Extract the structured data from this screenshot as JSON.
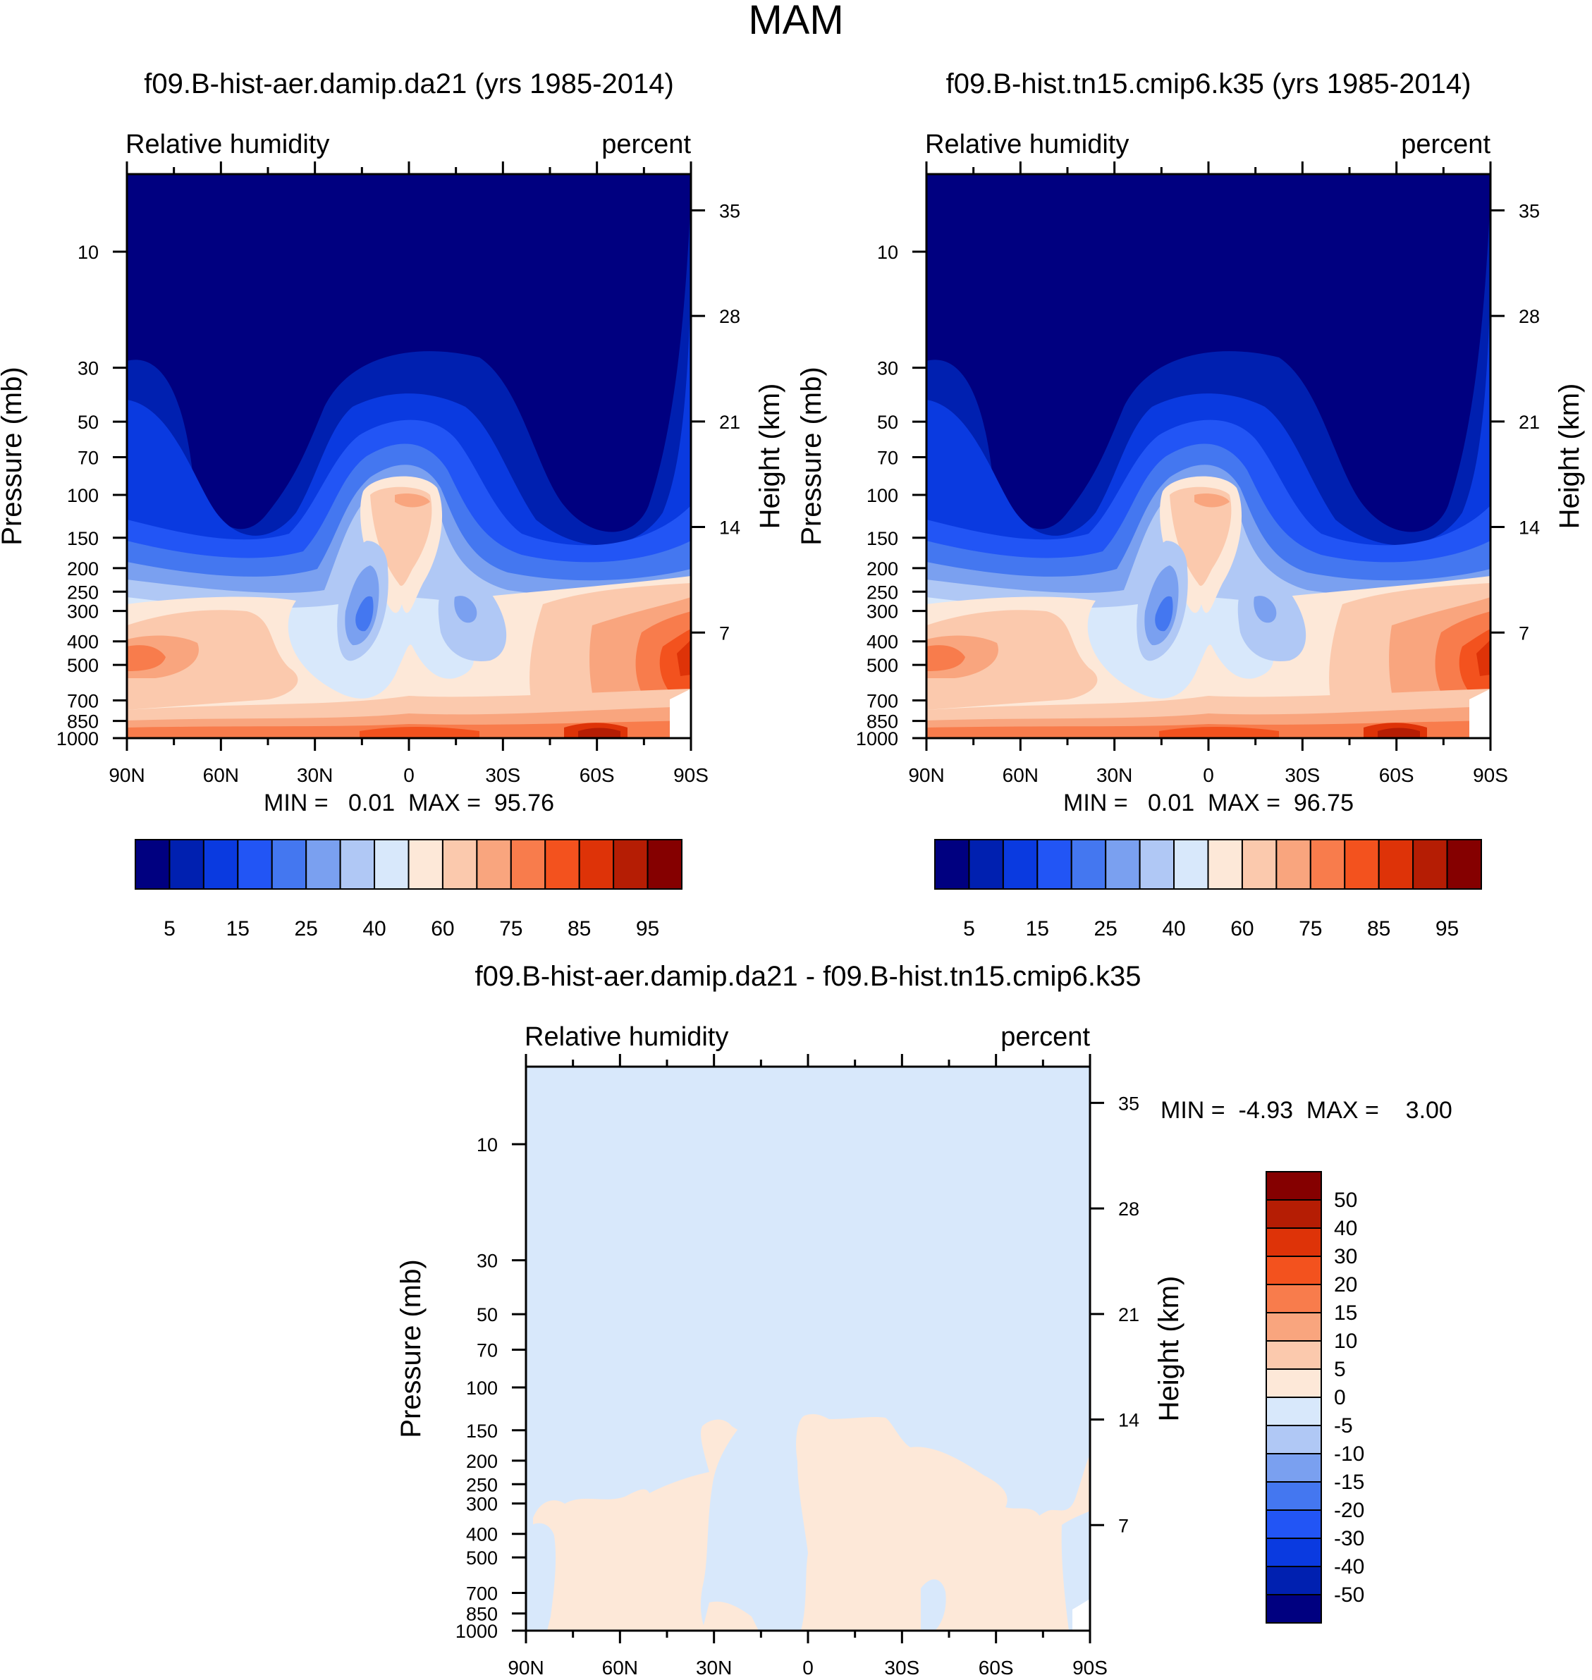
{
  "figure": {
    "title": "MAM"
  },
  "chart_data": [
    {
      "type": "heatmap",
      "title": "f09.B-hist-aer.damip.da21 (yrs 1985-2014)",
      "left_label": "Relative humidity",
      "right_label": "percent",
      "ylabel": "Pressure (mb)",
      "ylabel_right": "Height (km)",
      "x_ticks": [
        "90N",
        "60N",
        "30N",
        "0",
        "30S",
        "60S",
        "90S"
      ],
      "y_ticks": [
        "10",
        "30",
        "50",
        "70",
        "100",
        "150",
        "200",
        "250",
        "300",
        "400",
        "500",
        "700",
        "850",
        "1000"
      ],
      "y_ticks_right": [
        "35",
        "28",
        "21",
        "14",
        "7"
      ],
      "stats": "MIN =   0.01  MAX =  95.76",
      "colorbar_labels": [
        "5",
        "15",
        "25",
        "40",
        "60",
        "75",
        "85",
        "95"
      ],
      "levels": [
        5,
        10,
        15,
        20,
        25,
        30,
        40,
        50,
        60,
        70,
        75,
        80,
        85,
        90,
        95
      ]
    },
    {
      "type": "heatmap",
      "title": "f09.B-hist.tn15.cmip6.k35 (yrs 1985-2014)",
      "left_label": "Relative humidity",
      "right_label": "percent",
      "ylabel": "Pressure (mb)",
      "ylabel_right": "Height (km)",
      "x_ticks": [
        "90N",
        "60N",
        "30N",
        "0",
        "30S",
        "60S",
        "90S"
      ],
      "y_ticks": [
        "10",
        "30",
        "50",
        "70",
        "100",
        "150",
        "200",
        "250",
        "300",
        "400",
        "500",
        "700",
        "850",
        "1000"
      ],
      "y_ticks_right": [
        "35",
        "28",
        "21",
        "14",
        "7"
      ],
      "stats": "MIN =   0.01  MAX =  96.75",
      "colorbar_labels": [
        "5",
        "15",
        "25",
        "40",
        "60",
        "75",
        "85",
        "95"
      ],
      "levels": [
        5,
        10,
        15,
        20,
        25,
        30,
        40,
        50,
        60,
        70,
        75,
        80,
        85,
        90,
        95
      ]
    },
    {
      "type": "heatmap",
      "title": "f09.B-hist-aer.damip.da21 - f09.B-hist.tn15.cmip6.k35",
      "left_label": "Relative humidity",
      "right_label": "percent",
      "ylabel": "Pressure (mb)",
      "ylabel_right": "Height (km)",
      "x_ticks": [
        "90N",
        "60N",
        "30N",
        "0",
        "30S",
        "60S",
        "90S"
      ],
      "y_ticks": [
        "10",
        "30",
        "50",
        "70",
        "100",
        "150",
        "200",
        "250",
        "300",
        "400",
        "500",
        "700",
        "850",
        "1000"
      ],
      "y_ticks_right": [
        "35",
        "28",
        "21",
        "14",
        "7"
      ],
      "stats": "MIN =  -4.93  MAX =    3.00",
      "colorbar_labels": [
        "50",
        "40",
        "30",
        "20",
        "15",
        "10",
        "5",
        "0",
        "-5",
        "-10",
        "-15",
        "-20",
        "-30",
        "-40",
        "-50"
      ]
    }
  ],
  "colors": {
    "rh_scale": [
      "#000080",
      "#0020b0",
      "#0a3ae0",
      "#2255f5",
      "#4477f0",
      "#7aa0f0",
      "#b0c8f5",
      "#d8e8fb",
      "#fde8d8",
      "#fbc9ad",
      "#f9a57e",
      "#f87c4c",
      "#f3521e",
      "#de3308",
      "#b51d04",
      "#850000"
    ],
    "diff_scale": [
      "#850000",
      "#b51d04",
      "#de3308",
      "#f3521e",
      "#f87c4c",
      "#f9a57e",
      "#fbc9ad",
      "#fde8d8",
      "#d8e8fb",
      "#b0c8f5",
      "#7aa0f0",
      "#4477f0",
      "#2255f5",
      "#0a3ae0",
      "#0020b0",
      "#000080"
    ],
    "diff_negative": "#d8e8fb",
    "diff_positive": "#fde8d8"
  }
}
